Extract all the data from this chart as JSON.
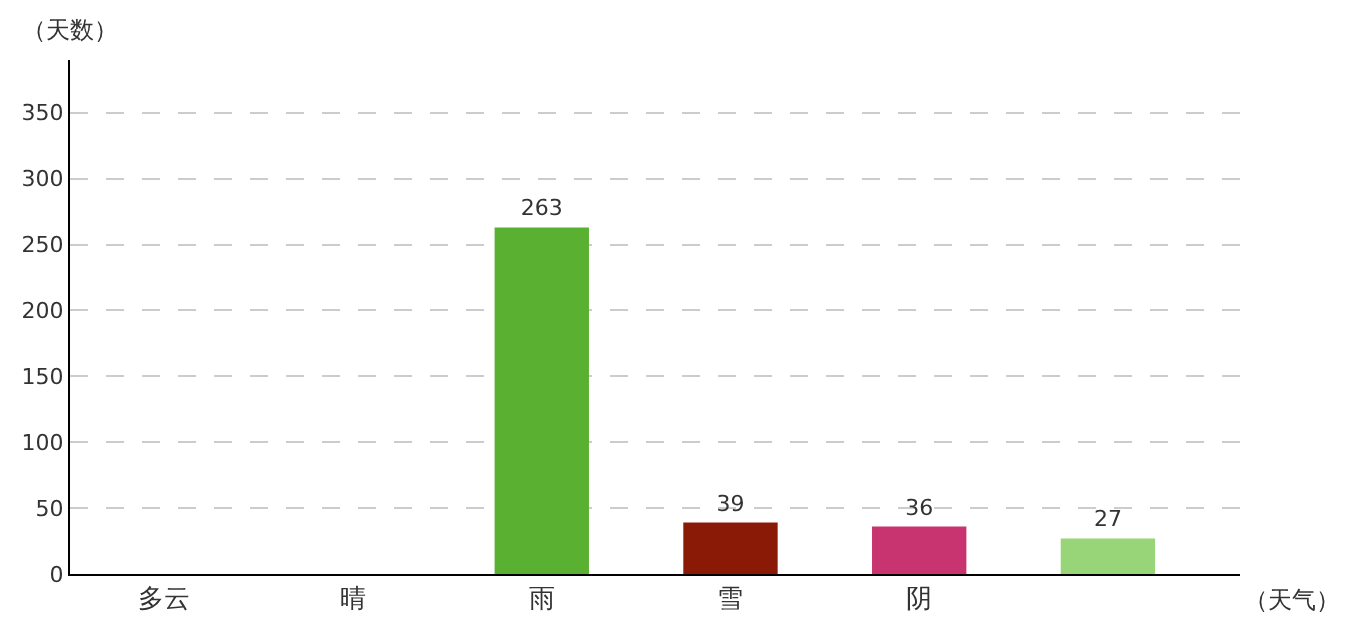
{
  "chart_data": {
    "type": "bar",
    "xlabel": "（天气）",
    "ylabel": "（天数）",
    "categories": [
      "多云",
      "晴",
      "雨",
      "雪",
      "阴",
      null
    ],
    "values": [
      null,
      null,
      263,
      39,
      36,
      27
    ],
    "colors": [
      "#10069a",
      "#50a83a",
      "#5ab030",
      "#8a1a06",
      "#c83470",
      "#98d478"
    ],
    "ylim": [
      0,
      390
    ],
    "yticks": [
      0,
      50,
      100,
      150,
      200,
      250,
      300,
      350
    ],
    "grid": "y",
    "data_labels": true
  }
}
